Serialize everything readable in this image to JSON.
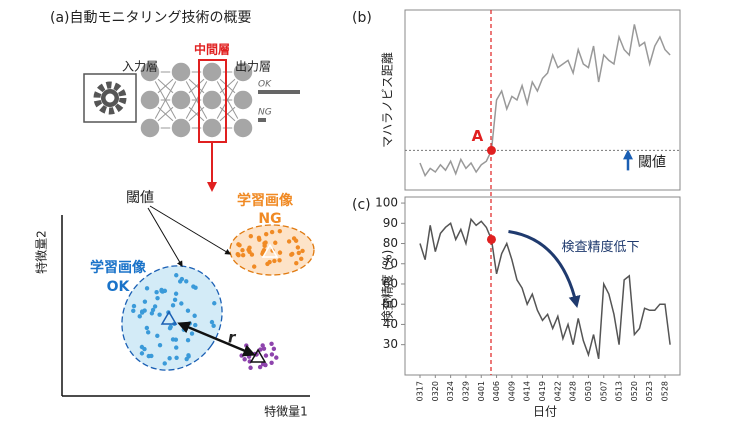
{
  "panel_a": {
    "title": "(a)自動モニタリング技術の概要",
    "network": {
      "input": "入力層",
      "middle": "中間層",
      "output": "出力層",
      "ok": "OK",
      "ng": "NG"
    },
    "scatter": {
      "threshold": "閾値",
      "ok_label": [
        "学習画像",
        "OK"
      ],
      "ng_label": [
        "学習画像",
        "NG"
      ],
      "r": "r",
      "xlabel": "特徴量1",
      "ylabel": "特徴量2"
    }
  },
  "chart_data": [
    {
      "type": "line",
      "label": "(b)",
      "ylabel": "マハラノビス距離",
      "color": "#999999",
      "ylim": [
        0,
        100
      ],
      "values": [
        15,
        8,
        12,
        10,
        14,
        11,
        16,
        9,
        17,
        12,
        15,
        10,
        14,
        16,
        22,
        50,
        55,
        45,
        52,
        50,
        58,
        48,
        60,
        55,
        62,
        65,
        75,
        68,
        70,
        72,
        65,
        78,
        70,
        68,
        80,
        60,
        75,
        72,
        70,
        85,
        78,
        75,
        92,
        80,
        82,
        70,
        80,
        85,
        78,
        75
      ],
      "threshold": 22,
      "threshold_label": "閾値",
      "annotation": {
        "text": "A",
        "index": 14
      }
    },
    {
      "type": "line",
      "label": "(c)",
      "ylabel": "検査精度 (%)",
      "xlabel": "日付",
      "color": "#555555",
      "ylim": [
        15,
        103
      ],
      "yticks": [
        30,
        40,
        50,
        60,
        70,
        80,
        90,
        100
      ],
      "categories": [
        "0317",
        null,
        null,
        "0320",
        null,
        null,
        "0324",
        null,
        null,
        "0329",
        null,
        null,
        "0401",
        null,
        null,
        "0406",
        null,
        null,
        "0409",
        null,
        null,
        "0414",
        null,
        null,
        "0419",
        null,
        null,
        "0422",
        null,
        null,
        "0428",
        null,
        null,
        "0503",
        null,
        null,
        "0507",
        null,
        null,
        "0513",
        null,
        null,
        "0520",
        null,
        null,
        "0523",
        null,
        null,
        "0528",
        null
      ],
      "values": [
        80,
        72,
        89,
        76,
        85,
        88,
        90,
        82,
        87,
        80,
        92,
        89,
        91,
        88,
        82,
        65,
        75,
        80,
        72,
        62,
        58,
        50,
        55,
        47,
        42,
        45,
        38,
        44,
        33,
        40,
        30,
        43,
        32,
        25,
        35,
        23,
        60,
        55,
        45,
        30,
        62,
        64,
        35,
        38,
        48,
        47,
        47,
        50,
        50,
        30
      ],
      "annotation": {
        "text": "検査精度低下",
        "index": 14
      }
    }
  ]
}
